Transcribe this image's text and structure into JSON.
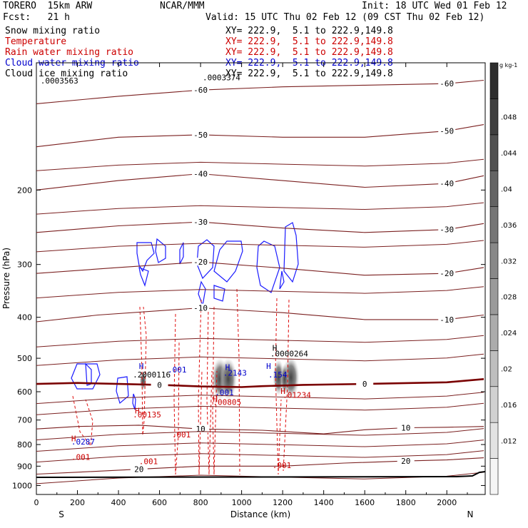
{
  "header": {
    "model": "TORERO  15km ARW",
    "center": "NCAR/MMM",
    "init": "Init: 18 UTC Wed 01 Feb 12",
    "fcst": "Fcst:   21 h",
    "valid": "Valid: 15 UTC Thu 02 Feb 12 (09 CST Thu 02 Feb 12)"
  },
  "fields": [
    {
      "name": "Snow mixing ratio",
      "xy": "XY= 222.9,  5.1 to 222.9,149.8",
      "color": "#000000"
    },
    {
      "name": "Temperature",
      "xy": "XY= 222.9,  5.1 to 222.9,149.8",
      "color": "#cc0000"
    },
    {
      "name": "Rain water mixing ratio",
      "xy": "XY= 222.9,  5.1 to 222.9,149.8",
      "color": "#cc0000"
    },
    {
      "name": "Cloud water mixing ratio",
      "xy": "XY= 222.9,  5.1 to 222.9,149.8",
      "color": "#0000cc"
    },
    {
      "name": "Cloud ice mixing ratio",
      "xy": "XY= 222.9,  5.1 to 222.9,149.8",
      "color": "#000000"
    }
  ],
  "chart_data": {
    "type": "line",
    "xlabel": "Distance (km)",
    "ylabel": "Pressure (hPa)",
    "xlim": [
      0,
      2180
    ],
    "ylim": [
      1050,
      100
    ],
    "x_ticks": [
      0,
      200,
      400,
      600,
      800,
      1000,
      1200,
      1400,
      1600,
      1800,
      2000
    ],
    "y_ticks": [
      200,
      300,
      400,
      500,
      600,
      700,
      800,
      900,
      1000
    ],
    "y_scale": "log",
    "end_labels": {
      "left": "S",
      "right": "N"
    },
    "colorbar": {
      "unit": "g kg-1",
      "labels": [
        ".012",
        ".016",
        ".02",
        ".024",
        ".028",
        ".032",
        ".036",
        ".04",
        ".044",
        ".048"
      ]
    },
    "isotherms": [
      {
        "label": "-60",
        "color": "#7a1f1f",
        "points": [
          [
            0,
            125
          ],
          [
            400,
            120
          ],
          [
            800,
            116
          ],
          [
            1200,
            114
          ],
          [
            1600,
            113
          ],
          [
            2000,
            112
          ],
          [
            2180,
            110
          ]
        ]
      },
      {
        "label": "-50",
        "color": "#7a1f1f",
        "points": [
          [
            0,
            158
          ],
          [
            400,
            150
          ],
          [
            800,
            148
          ],
          [
            1200,
            150
          ],
          [
            1600,
            150
          ],
          [
            2000,
            145
          ],
          [
            2180,
            140
          ]
        ]
      },
      {
        "label": "-40",
        "color": "#7a1f1f",
        "points": [
          [
            0,
            200
          ],
          [
            400,
            190
          ],
          [
            800,
            183
          ],
          [
            1200,
            190
          ],
          [
            1600,
            197
          ],
          [
            2000,
            193
          ],
          [
            2180,
            185
          ]
        ]
      },
      {
        "label": "-30",
        "color": "#7a1f1f",
        "points": [
          [
            0,
            252
          ],
          [
            400,
            243
          ],
          [
            800,
            238
          ],
          [
            1200,
            246
          ],
          [
            1600,
            252
          ],
          [
            2000,
            248
          ],
          [
            2180,
            240
          ]
        ]
      },
      {
        "label": "-20",
        "color": "#7a1f1f",
        "points": [
          [
            0,
            315
          ],
          [
            400,
            305
          ],
          [
            800,
            296
          ],
          [
            1200,
            306
          ],
          [
            1600,
            318
          ],
          [
            2000,
            315
          ],
          [
            2180,
            305
          ]
        ]
      },
      {
        "label": "-10",
        "color": "#7a1f1f",
        "points": [
          [
            0,
            410
          ],
          [
            300,
            395
          ],
          [
            800,
            380
          ],
          [
            1200,
            390
          ],
          [
            1600,
            405
          ],
          [
            2000,
            405
          ],
          [
            2180,
            395
          ]
        ]
      },
      {
        "label": "0",
        "color": "#7a0000",
        "points": [
          [
            0,
            575
          ],
          [
            200,
            572
          ],
          [
            400,
            575
          ],
          [
            600,
            578
          ],
          [
            800,
            583
          ],
          [
            1000,
            585
          ],
          [
            1100,
            582
          ],
          [
            1300,
            578
          ],
          [
            1600,
            575
          ],
          [
            2000,
            570
          ],
          [
            2180,
            560
          ]
        ]
      },
      {
        "label": "10",
        "color": "#7a1f1f",
        "points": [
          [
            0,
            735
          ],
          [
            200,
            725
          ],
          [
            500,
            720
          ],
          [
            800,
            735
          ],
          [
            1100,
            740
          ],
          [
            1400,
            755
          ],
          [
            1600,
            738
          ],
          [
            1800,
            730
          ],
          [
            2000,
            728
          ],
          [
            2180,
            725
          ]
        ]
      },
      {
        "label": "20",
        "color": "#7a1f1f",
        "points": [
          [
            0,
            940
          ],
          [
            200,
            930
          ],
          [
            500,
            915
          ],
          [
            800,
            900
          ],
          [
            1200,
            900
          ],
          [
            1500,
            885
          ],
          [
            1800,
            875
          ],
          [
            2000,
            870
          ],
          [
            2180,
            860
          ]
        ]
      }
    ],
    "annotations": [
      {
        "text": ".0003563",
        "x": 20,
        "p": 112,
        "color": "#000000"
      },
      {
        "text": ".0003374",
        "x": 810,
        "p": 110,
        "color": "#000000"
      },
      {
        "text": ".0000264",
        "x": 1140,
        "p": 495,
        "color": "#000000"
      },
      {
        "text": ".2000116",
        "x": 470,
        "p": 555,
        "color": "#000000"
      },
      {
        "text": ".001",
        "x": 640,
        "p": 540,
        "color": "#0000cc"
      },
      {
        "text": ".2143",
        "x": 910,
        "p": 550,
        "color": "#0000cc"
      },
      {
        "text": ".154",
        "x": 1130,
        "p": 555,
        "color": "#0000cc"
      },
      {
        "text": ".001",
        "x": 870,
        "p": 612,
        "color": "#0000cc"
      },
      {
        "text": ".00805",
        "x": 860,
        "p": 645,
        "color": "#cc0000"
      },
      {
        "text": ".01234",
        "x": 1200,
        "p": 620,
        "color": "#cc0000"
      },
      {
        "text": ".00135",
        "x": 470,
        "p": 690,
        "color": "#cc0000"
      },
      {
        "text": ".001",
        "x": 660,
        "p": 770,
        "color": "#cc0000"
      },
      {
        "text": ".001",
        "x": 170,
        "p": 870,
        "color": "#cc0000"
      },
      {
        "text": ".001",
        "x": 500,
        "p": 890,
        "color": "#cc0000"
      },
      {
        "text": ".001",
        "x": 1150,
        "p": 910,
        "color": "#cc0000"
      },
      {
        "text": ".0287",
        "x": 170,
        "p": 800,
        "color": "#0000cc"
      },
      {
        "text": "H",
        "x": 1150,
        "p": 480,
        "color": "#000000"
      },
      {
        "text": "H",
        "x": 500,
        "p": 530,
        "color": "#0000cc"
      },
      {
        "text": "H",
        "x": 920,
        "p": 533,
        "color": "#0000cc"
      },
      {
        "text": "H",
        "x": 1120,
        "p": 530,
        "color": "#0000cc"
      },
      {
        "text": "H",
        "x": 860,
        "p": 634,
        "color": "#cc0000"
      },
      {
        "text": "H",
        "x": 1190,
        "p": 607,
        "color": "#cc0000"
      },
      {
        "text": "H",
        "x": 480,
        "p": 675,
        "color": "#cc0000"
      },
      {
        "text": "H",
        "x": 170,
        "p": 786,
        "color": "#cc0000"
      }
    ]
  }
}
